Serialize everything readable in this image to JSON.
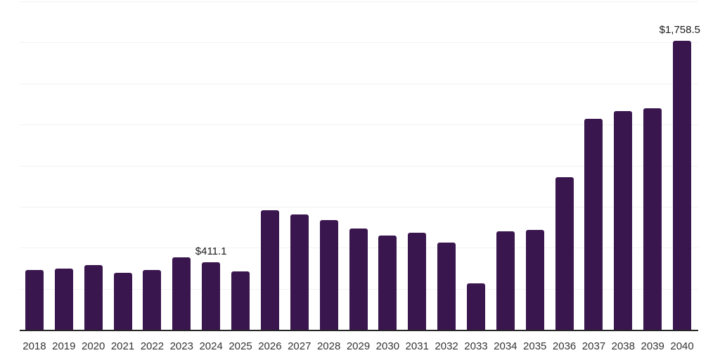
{
  "chart_data": {
    "type": "bar",
    "title": "",
    "xlabel": "",
    "ylabel": "",
    "categories": [
      "2018",
      "2019",
      "2020",
      "2021",
      "2022",
      "2023",
      "2024",
      "2025",
      "2026",
      "2027",
      "2028",
      "2029",
      "2030",
      "2031",
      "2032",
      "2033",
      "2034",
      "2035",
      "2036",
      "2037",
      "2038",
      "2039",
      "2040"
    ],
    "values": [
      362,
      371,
      395,
      348,
      363,
      440,
      411.1,
      355,
      728,
      703,
      669,
      615,
      574,
      592,
      531,
      283,
      600,
      607,
      928,
      1283,
      1330,
      1350,
      1758.5
    ],
    "value_labels": {
      "2024": "$411.1",
      "2040": "$1,758.5"
    },
    "ylim": [
      0,
      2000
    ],
    "grid_step": 250,
    "grid": true,
    "legend": false,
    "y_axis_labels_visible": false,
    "colors": {
      "bar": "#3a164f",
      "axis": "#262626",
      "grid": "#f2f2f2",
      "tick_label": "#333333",
      "value_label": "#1a1a1a"
    }
  }
}
